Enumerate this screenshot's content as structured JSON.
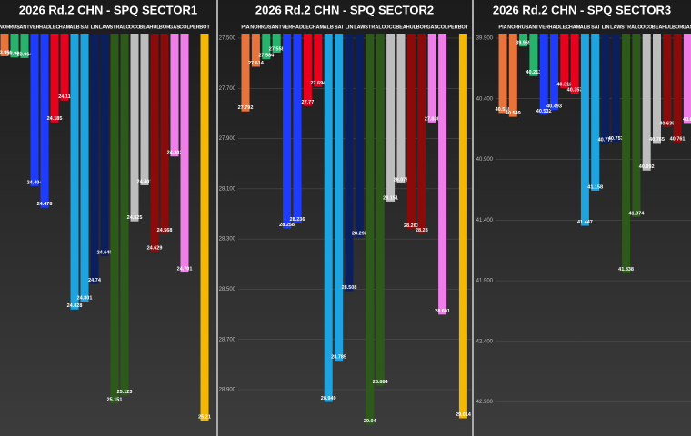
{
  "chart_data": [
    {
      "type": "bar",
      "title": "2026 Rd.2 CHN - SPQ SECTOR1",
      "categories": [
        "NOR",
        "RUS",
        "ANT",
        "VER",
        "HAD",
        "LEC",
        "HAM",
        "ALB",
        "SAI",
        "LIN",
        "LAW",
        "STR",
        "ALO",
        "OCO",
        "BEA",
        "HUL",
        "BOR",
        "GAS",
        "COL",
        "PER",
        "BOT"
      ],
      "values": [
        23.958,
        23.962,
        23.964,
        24.404,
        24.478,
        24.185,
        24.11,
        24.828,
        24.801,
        24.74,
        24.645,
        25.151,
        25.123,
        24.525,
        24.401,
        24.629,
        24.568,
        24.302,
        24.701,
        null,
        25.21
      ],
      "colors": [
        "#e8743b",
        "#27b36b",
        "#27b36b",
        "#1e3cff",
        "#1e3cff",
        "#e8001d",
        "#e8001d",
        "#1ca3e0",
        "#1ca3e0",
        "#0b1f5e",
        "#0b1f5e",
        "#2d5a1b",
        "#2d5a1b",
        "#bdbdbd",
        "#bdbdbd",
        "#8b0a0a",
        "#8b0a0a",
        "#f07ee8",
        "#f07ee8",
        "#f5b800",
        "#f5b800"
      ],
      "ylim": [
        23.88,
        25.25
      ],
      "inverted": true
    },
    {
      "type": "bar",
      "title": "2026 Rd.2 CHN - SPQ SECTOR2",
      "categories": [
        "PIA",
        "NOR",
        "RUS",
        "ANT",
        "VER",
        "HAD",
        "LEC",
        "HAM",
        "ALB",
        "SAI",
        "LIN",
        "LAW",
        "STR",
        "ALO",
        "OCO",
        "BEA",
        "HUL",
        "BOR",
        "GAS",
        "COL",
        "PER",
        "BOT"
      ],
      "values": [
        27.792,
        27.614,
        27.584,
        27.558,
        28.258,
        28.236,
        27.77,
        27.694,
        28.949,
        28.785,
        28.508,
        28.293,
        29.04,
        28.884,
        28.151,
        28.079,
        28.261,
        28.28,
        27.836,
        28.601,
        null,
        29.014
      ],
      "colors": [
        "#e8743b",
        "#e8743b",
        "#27b36b",
        "#27b36b",
        "#1e3cff",
        "#1e3cff",
        "#e8001d",
        "#e8001d",
        "#1ca3e0",
        "#1ca3e0",
        "#0b1f5e",
        "#0b1f5e",
        "#2d5a1b",
        "#2d5a1b",
        "#bdbdbd",
        "#bdbdbd",
        "#8b0a0a",
        "#8b0a0a",
        "#f07ee8",
        "#f07ee8",
        "#f5b800",
        "#f5b800"
      ],
      "ylim": [
        27.482,
        29.07
      ],
      "inverted": true,
      "yticks": [
        {
          "value": 27.5,
          "label": "27.500"
        },
        {
          "value": 27.7,
          "label": "27.700"
        },
        {
          "value": 27.9,
          "label": "27.900"
        },
        {
          "value": 28.1,
          "label": "28.100"
        },
        {
          "value": 28.3,
          "label": "28.300"
        },
        {
          "value": 28.5,
          "label": "28.500"
        },
        {
          "value": 28.7,
          "label": "28.700"
        },
        {
          "value": 28.9,
          "label": "28.900"
        }
      ]
    },
    {
      "type": "bar",
      "title": "2026 Rd.2 CHN - SPQ SECTOR3",
      "categories": [
        "PIA",
        "NOR",
        "RUS",
        "ANT",
        "VER",
        "HAD",
        "LEC",
        "HAM",
        "ALB",
        "SAI",
        "LIN",
        "LAW",
        "STR",
        "ALO",
        "OCO",
        "BEA",
        "HUL",
        "BOR",
        "GAS"
      ],
      "values": [
        40.518,
        40.549,
        39.969,
        40.213,
        40.532,
        40.493,
        40.312,
        40.357,
        41.447,
        41.158,
        40.771,
        40.757,
        41.838,
        41.374,
        40.992,
        40.765,
        40.635,
        40.761,
        40.6
      ],
      "colors": [
        "#e8743b",
        "#e8743b",
        "#27b36b",
        "#27b36b",
        "#1e3cff",
        "#1e3cff",
        "#e8001d",
        "#e8001d",
        "#1ca3e0",
        "#1ca3e0",
        "#0b1f5e",
        "#0b1f5e",
        "#2d5a1b",
        "#2d5a1b",
        "#bdbdbd",
        "#bdbdbd",
        "#8b0a0a",
        "#8b0a0a",
        "#f07ee8"
      ],
      "ylim": [
        39.863,
        43.15
      ],
      "inverted": true,
      "yticks": [
        {
          "value": 39.9,
          "label": "39.900"
        },
        {
          "value": 40.4,
          "label": "40.400"
        },
        {
          "value": 40.9,
          "label": "40.900"
        },
        {
          "value": 41.4,
          "label": "41.400"
        },
        {
          "value": 41.9,
          "label": "41.900"
        },
        {
          "value": 42.4,
          "label": "42.400"
        },
        {
          "value": 42.9,
          "label": "42.900"
        }
      ]
    }
  ]
}
